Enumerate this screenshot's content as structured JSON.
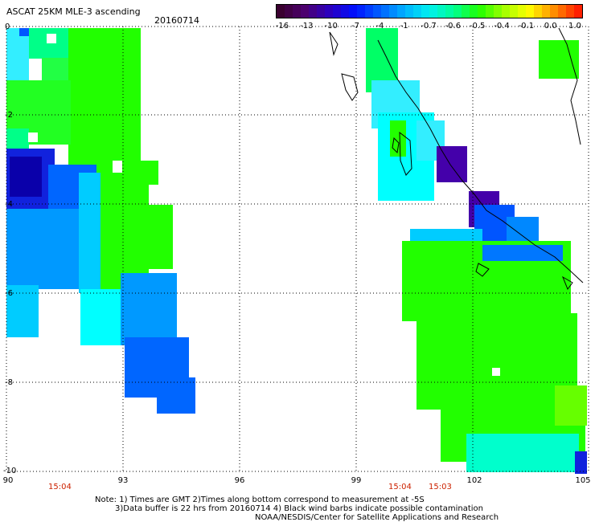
{
  "header": {
    "title": "ASCAT 25KM MLE-3 ascending",
    "date": "20160714"
  },
  "colorbar": {
    "labels": [
      "-16",
      "-13",
      "-10",
      "-7",
      "-4",
      "-1",
      "-0.7",
      "-0.6",
      "-0.5",
      "-0.4",
      "-0.1",
      "0.0",
      "1.0"
    ],
    "colors": [
      "#3a0030",
      "#4c0070",
      "#2a00c0",
      "#0010ff",
      "#0060ff",
      "#00b0ff",
      "#00f0f0",
      "#00ff90",
      "#20ff00",
      "#a0ff00",
      "#ffff00",
      "#ff9000",
      "#ff2000"
    ]
  },
  "axes": {
    "lat_labels": [
      "0",
      "-2",
      "-4",
      "-6",
      "-8",
      "-10"
    ],
    "lon_labels": [
      "90",
      "93",
      "96",
      "99",
      "102",
      "105"
    ]
  },
  "times": [
    "15:04",
    "15:04",
    "15:03"
  ],
  "notes": {
    "line1": "Note: 1) Times are GMT 2)Times along bottom correspond to measurement at -5S",
    "line2": "3)Data buffer is 22 hrs from 20160714 4) Black wind barbs indicate possible contamination",
    "line3": "NOAA/NESDIS/Center for Satellite Applications and Research"
  },
  "palette": {
    "green": "#22ff00",
    "bright_green": "#00ff44",
    "cyan": "#00ffff",
    "light_cyan": "#33eeff",
    "sky": "#00ccff",
    "blue": "#0099ff",
    "deep_blue": "#0055ff",
    "navy": "#1122dd",
    "indigo": "#4400aa",
    "yellow_green": "#66ff00"
  }
}
